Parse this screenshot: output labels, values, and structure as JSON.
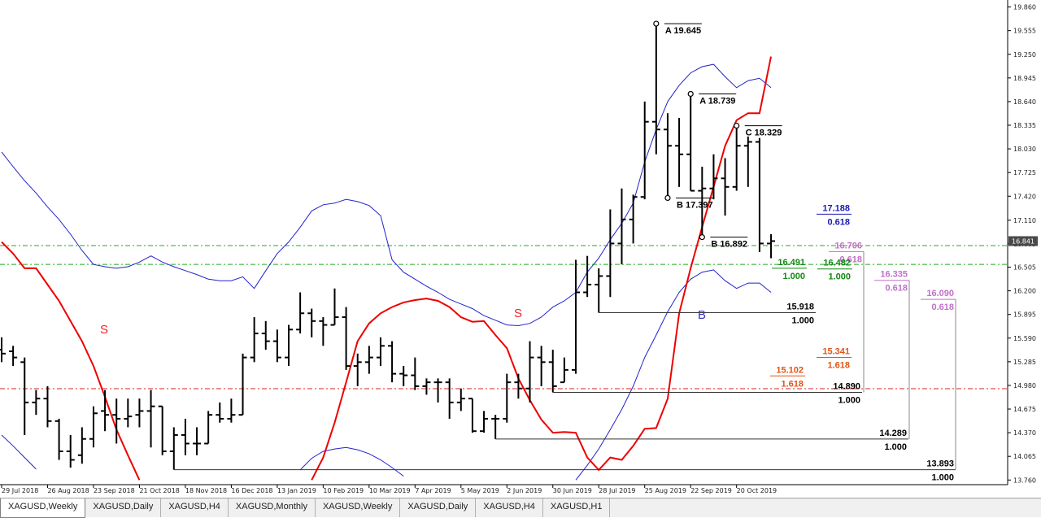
{
  "chart_data": {
    "type": "ohlc",
    "categories": [
      "29 Jul 2018",
      null,
      null,
      null,
      "26 Aug 2018",
      null,
      null,
      null,
      "23 Sep 2018",
      null,
      null,
      null,
      "21 Oct 2018",
      null,
      null,
      null,
      "18 Nov 2018",
      null,
      null,
      null,
      "16 Dec 2018",
      null,
      null,
      null,
      "13 Jan 2019",
      null,
      null,
      null,
      "10 Feb 2019",
      null,
      null,
      null,
      "10 Mar 2019",
      null,
      null,
      null,
      "7 Apr 2019",
      null,
      null,
      null,
      "5 May 2019",
      null,
      null,
      null,
      "2 Jun 2019",
      null,
      null,
      null,
      "30 Jun 2019",
      null,
      null,
      null,
      "28 Jul 2019",
      null,
      null,
      null,
      "25 Aug 2019",
      null,
      null,
      null,
      "22 Sep 2019",
      null,
      null,
      null,
      "20 Oct 2019",
      null,
      null,
      null
    ],
    "open": [
      15.44,
      15.42,
      15.28,
      14.76,
      14.81,
      14.52,
      14.13,
      14.08,
      14.29,
      14.65,
      14.6,
      14.55,
      14.6,
      14.65,
      14.71,
      14.13,
      14.34,
      14.23,
      14.23,
      14.6,
      14.55,
      14.6,
      15.34,
      15.65,
      15.55,
      15.34,
      15.7,
      15.91,
      15.81,
      15.76,
      15.86,
      15.23,
      15.28,
      15.34,
      15.49,
      15.13,
      15.11,
      14.97,
      15.02,
      15.02,
      14.76,
      14.81,
      14.39,
      14.55,
      14.55,
      15.02,
      14.94,
      15.34,
      15.28,
      15.02,
      15.18,
      16.18,
      16.28,
      16.39,
      16.81,
      17.12,
      17.41,
      18.38,
      18.28,
      18.07,
      17.96,
      17.49,
      17.52,
      17.65,
      17.54,
      18.07,
      18.12,
      16.81
    ],
    "high": [
      15.6,
      15.49,
      15.34,
      14.92,
      14.97,
      14.55,
      14.34,
      14.44,
      14.71,
      14.92,
      14.81,
      14.81,
      14.81,
      14.92,
      14.71,
      14.44,
      14.55,
      14.44,
      14.65,
      14.76,
      14.81,
      15.39,
      15.86,
      15.81,
      15.7,
      15.76,
      16.18,
      15.97,
      15.86,
      16.23,
      15.99,
      15.39,
      15.49,
      15.6,
      15.55,
      15.23,
      15.34,
      15.07,
      15.07,
      15.07,
      14.94,
      14.81,
      14.65,
      14.6,
      15.13,
      15.13,
      15.55,
      15.49,
      15.44,
      15.34,
      16.6,
      16.65,
      16.49,
      17.25,
      17.52,
      17.44,
      18.64,
      19.645,
      18.49,
      18.43,
      18.739,
      17.8,
      17.96,
      17.91,
      18.329,
      18.19,
      18.17,
      16.93
    ],
    "low": [
      15.28,
      15.23,
      14.34,
      14.6,
      14.44,
      14.02,
      13.92,
      13.97,
      14.18,
      14.39,
      14.23,
      14.44,
      14.44,
      14.18,
      14.08,
      13.893,
      14.08,
      14.08,
      14.23,
      14.5,
      14.5,
      14.6,
      15.28,
      15.44,
      15.28,
      15.23,
      15.65,
      15.6,
      15.49,
      15.76,
      15.18,
      14.97,
      15.13,
      15.23,
      15.02,
      14.97,
      14.92,
      14.86,
      14.76,
      14.55,
      14.65,
      14.37,
      14.37,
      14.289,
      14.5,
      14.81,
      14.76,
      14.97,
      14.89,
      15.02,
      15.13,
      16.12,
      15.918,
      16.12,
      16.54,
      16.81,
      17.38,
      17.96,
      17.397,
      17.54,
      17.49,
      16.892,
      17.38,
      17.17,
      17.49,
      17.54,
      16.7,
      16.62
    ],
    "close": [
      15.39,
      15.34,
      14.76,
      14.81,
      14.52,
      14.13,
      14.02,
      14.29,
      14.62,
      14.6,
      14.55,
      14.58,
      14.65,
      14.71,
      14.13,
      14.34,
      14.23,
      14.23,
      14.6,
      14.55,
      14.6,
      15.34,
      15.65,
      15.55,
      15.34,
      15.7,
      15.91,
      15.81,
      15.76,
      15.86,
      15.23,
      15.28,
      15.34,
      15.49,
      15.13,
      15.11,
      14.97,
      15.02,
      15.02,
      14.76,
      14.81,
      14.39,
      14.55,
      14.55,
      15.02,
      14.94,
      15.34,
      15.28,
      14.97,
      15.18,
      16.18,
      16.28,
      16.39,
      16.81,
      17.12,
      17.41,
      18.38,
      18.28,
      18.07,
      17.96,
      17.49,
      17.52,
      17.65,
      17.54,
      18.07,
      18.12,
      16.81,
      16.841
    ],
    "bar_color": "#000000",
    "lines": [
      {
        "color": "#2222cc",
        "width": 1,
        "values": [
          17.99,
          17.8,
          17.62,
          17.46,
          17.28,
          17.12,
          16.93,
          16.72,
          16.54,
          16.51,
          16.49,
          16.51,
          16.57,
          16.65,
          16.57,
          16.51,
          16.46,
          16.41,
          16.35,
          16.33,
          16.33,
          16.38,
          16.23,
          16.46,
          16.68,
          16.83,
          17.02,
          17.23,
          17.31,
          17.33,
          17.38,
          17.35,
          17.3,
          17.17,
          16.6,
          16.44,
          16.35,
          16.26,
          16.18,
          16.09,
          16.03,
          15.97,
          15.88,
          15.82,
          15.76,
          15.75,
          15.78,
          15.86,
          15.99,
          16.07,
          16.18,
          16.44,
          16.62,
          16.86,
          17.07,
          17.33,
          17.86,
          18.28,
          18.64,
          18.85,
          19.01,
          19.09,
          19.12,
          18.96,
          18.82,
          18.91,
          18.94,
          18.82
        ]
      },
      {
        "color": "#2222cc",
        "width": 1,
        "values": [
          14.34,
          14.2,
          14.05,
          13.9,
          null,
          null,
          null,
          null,
          null,
          null,
          null,
          null,
          null,
          null,
          null,
          null,
          null,
          null,
          null,
          null,
          null,
          null,
          null,
          null,
          null,
          null,
          13.89,
          14.04,
          14.13,
          14.16,
          14.18,
          14.15,
          14.1,
          14.02,
          13.92,
          13.81,
          null,
          null,
          null,
          null,
          null,
          null,
          null,
          null,
          null,
          null,
          null,
          null,
          null,
          null,
          13.76,
          13.95,
          14.16,
          14.41,
          14.67,
          14.97,
          15.34,
          15.63,
          15.93,
          16.18,
          16.35,
          16.44,
          16.47,
          16.33,
          16.23,
          16.3,
          16.3,
          16.18
        ]
      },
      {
        "color": "#ee0000",
        "width": 2,
        "values": [
          16.83,
          16.68,
          16.49,
          16.49,
          16.28,
          16.07,
          15.81,
          15.55,
          15.23,
          14.83,
          14.41,
          14.08,
          13.76,
          null,
          null,
          null,
          null,
          null,
          null,
          null,
          null,
          null,
          null,
          null,
          null,
          null,
          null,
          13.76,
          14.05,
          14.5,
          15.02,
          15.55,
          15.78,
          15.91,
          15.99,
          16.05,
          16.08,
          16.1,
          16.07,
          15.99,
          15.86,
          15.8,
          15.81,
          15.63,
          15.46,
          15.07,
          14.79,
          14.54,
          14.37,
          14.38,
          14.37,
          14.05,
          13.89,
          14.05,
          14.02,
          14.2,
          14.42,
          14.43,
          14.81,
          15.91,
          16.49,
          17.02,
          17.54,
          18.07,
          18.4,
          18.49,
          18.49,
          19.22
        ]
      }
    ],
    "hlines": [
      {
        "value": 16.783,
        "color": "#22aa22"
      },
      {
        "value": 16.54,
        "color": "#22aa22"
      },
      {
        "value": 14.937,
        "color": "#dd2222"
      }
    ],
    "pivots": [
      {
        "label": "A 19.645",
        "value": 19.645
      },
      {
        "label": "A 18.739",
        "value": 18.739
      },
      {
        "label": "C 18.329",
        "value": 18.329
      },
      {
        "label": "B 17.397",
        "value": 17.397
      },
      {
        "label": "B 16.892",
        "value": 16.892
      }
    ],
    "levels": [
      {
        "price": 17.188,
        "price_label": "17.188",
        "ratio": "0.618",
        "color": "#1a1ab4"
      },
      {
        "price": 16.706,
        "price_label": "16.706",
        "ratio": "0.618",
        "color": "#c070c8"
      },
      {
        "price": 16.491,
        "price_label": "16.491",
        "ratio": "1.000",
        "color": "#118811"
      },
      {
        "price": 16.482,
        "price_label": "16.482",
        "ratio": "1.000",
        "color": "#118811"
      },
      {
        "price": 16.335,
        "price_label": "16.335",
        "ratio": "0.618",
        "color": "#c070c8"
      },
      {
        "price": 16.09,
        "price_label": "16.090",
        "ratio": "0.618",
        "color": "#c070c8"
      },
      {
        "price": 15.918,
        "price_label": "15.918",
        "ratio": "1.000",
        "color": "#000000"
      },
      {
        "price": 15.341,
        "price_label": "15.341",
        "ratio": "1.618",
        "color": "#e05515"
      },
      {
        "price": 15.102,
        "price_label": "15.102",
        "ratio": "1.618",
        "color": "#e05515"
      },
      {
        "price": 14.89,
        "price_label": "14.890",
        "ratio": "1.000",
        "color": "#000000"
      },
      {
        "price": 14.289,
        "price_label": "14.289",
        "ratio": "1.000",
        "color": "#000000"
      },
      {
        "price": 13.893,
        "price_label": "13.893",
        "ratio": "1.000",
        "color": "#000000"
      }
    ],
    "markers": [
      {
        "text": "S",
        "color": "#ee2222"
      },
      {
        "text": "S",
        "color": "#ee2222"
      },
      {
        "text": "B",
        "color": "#3333bb"
      }
    ],
    "ylim": [
      13.7,
      19.95
    ],
    "yticks": [
      {
        "value": 19.86,
        "label": "19.860"
      },
      19.555,
      {
        "value": 19.25,
        "label": "19.250"
      },
      18.945,
      {
        "value": 18.64,
        "label": "18.640"
      },
      18.335,
      {
        "value": 18.03,
        "label": "18.030"
      },
      17.725,
      {
        "value": 17.42,
        "label": "17.420"
      },
      {
        "value": 17.11,
        "label": "17.110"
      },
      16.805,
      16.505,
      {
        "value": 16.2,
        "label": "16.200"
      },
      15.895,
      {
        "value": 15.59,
        "label": "15.590"
      },
      15.285,
      {
        "value": 14.98,
        "label": "14.980"
      },
      14.675,
      {
        "value": 14.37,
        "label": "14.370"
      },
      14.065,
      {
        "value": 13.76,
        "label": "13.760"
      }
    ]
  },
  "tabs": {
    "items": [
      "XAGUSD,Weekly",
      "XAGUSD,Daily",
      "XAGUSD,H4",
      "XAGUSD,Monthly",
      "XAGUSD,Weekly",
      "XAGUSD,Daily",
      "XAGUSD,H4",
      "XAGUSD,H1"
    ],
    "active": 0
  }
}
